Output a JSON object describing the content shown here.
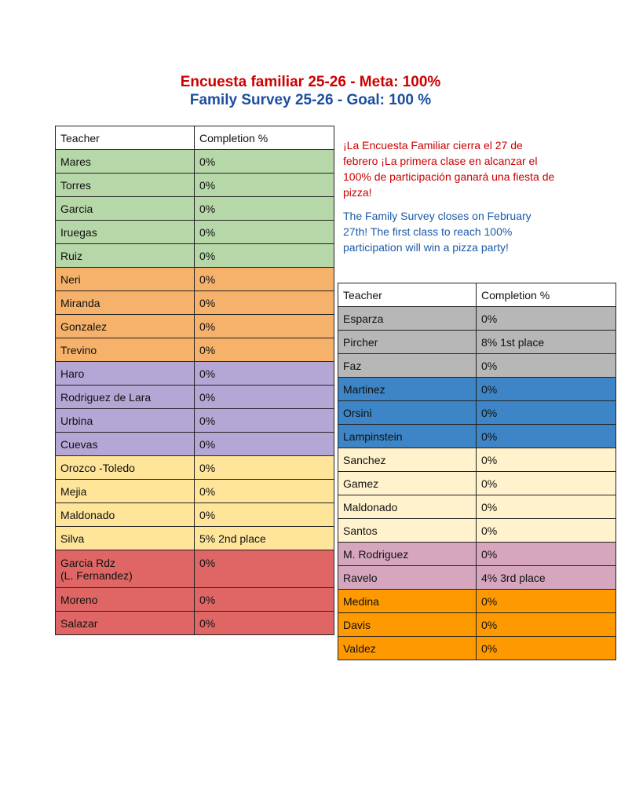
{
  "title_es": "Encuesta familiar 25-26 - Meta: 100%",
  "title_en": "Family Survey 25-26 - Goal: 100 %",
  "note_es": "¡La Encuesta Familiar cierra el 27 de febrero ¡La primera clase en alcanzar el 100% de participación ganará una fiesta de pizza!",
  "note_en": "The Family Survey closes on February 27th! The first class to reach 100% participation will win a pizza party!",
  "colors": {
    "green": "#b6d7a8",
    "orange": "#f6b26b",
    "purple": "#b4a7d6",
    "yellow": "#ffe599",
    "red": "#e06666",
    "gray": "#b7b7b7",
    "blue": "#3d85c6",
    "cream": "#fff2cc",
    "pink": "#d5a6bd",
    "bright_orange": "#ff9900",
    "header": "#ffffff"
  },
  "left_table": {
    "headers": [
      "Teacher",
      "Completion %"
    ],
    "rows": [
      {
        "teacher": "Mares",
        "completion": "0%",
        "color": "green"
      },
      {
        "teacher": "Torres",
        "completion": "0%",
        "color": "green"
      },
      {
        "teacher": "Garcia",
        "completion": "0%",
        "color": "green"
      },
      {
        "teacher": "Iruegas",
        "completion": "0%",
        "color": "green"
      },
      {
        "teacher": "Ruiz",
        "completion": "0%",
        "color": "green"
      },
      {
        "teacher": "Neri",
        "completion": "0%",
        "color": "orange"
      },
      {
        "teacher": "Miranda",
        "completion": "0%",
        "color": "orange"
      },
      {
        "teacher": "Gonzalez",
        "completion": "0%",
        "color": "orange"
      },
      {
        "teacher": "Trevino",
        "completion": "0%",
        "color": "orange"
      },
      {
        "teacher": "Haro",
        "completion": "0%",
        "color": "purple"
      },
      {
        "teacher": "Rodriguez de Lara",
        "completion": "0%",
        "color": "purple"
      },
      {
        "teacher": "Urbina",
        "completion": "0%",
        "color": "purple"
      },
      {
        "teacher": "Cuevas",
        "completion": "0%",
        "color": "purple"
      },
      {
        "teacher": "Orozco -Toledo",
        "completion": "0%",
        "color": "yellow"
      },
      {
        "teacher": "Mejia",
        "completion": "0%",
        "color": "yellow"
      },
      {
        "teacher": "Maldonado",
        "completion": "0%",
        "color": "yellow"
      },
      {
        "teacher": "Silva",
        "completion": "5% 2nd place",
        "color": "yellow"
      },
      {
        "teacher": "Garcia Rdz\n(L. Fernandez)",
        "completion": "0%",
        "color": "red"
      },
      {
        "teacher": "Moreno",
        "completion": "0%",
        "color": "red"
      },
      {
        "teacher": "Salazar",
        "completion": "0%",
        "color": "red"
      }
    ]
  },
  "right_table": {
    "headers": [
      "Teacher",
      "Completion %"
    ],
    "rows": [
      {
        "teacher": "Esparza",
        "completion": "0%",
        "color": "gray"
      },
      {
        "teacher": "Pircher",
        "completion": "8% 1st place",
        "color": "gray"
      },
      {
        "teacher": "Faz",
        "completion": "0%",
        "color": "gray"
      },
      {
        "teacher": "Martinez",
        "completion": "0%",
        "color": "blue"
      },
      {
        "teacher": "Orsini",
        "completion": "0%",
        "color": "blue"
      },
      {
        "teacher": "Lampinstein",
        "completion": "0%",
        "color": "blue"
      },
      {
        "teacher": "Sanchez",
        "completion": "0%",
        "color": "cream"
      },
      {
        "teacher": "Gamez",
        "completion": "0%",
        "color": "cream"
      },
      {
        "teacher": "Maldonado",
        "completion": "0%",
        "color": "cream"
      },
      {
        "teacher": "Santos",
        "completion": "0%",
        "color": "cream"
      },
      {
        "teacher": "M. Rodriguez",
        "completion": "0%",
        "color": "pink"
      },
      {
        "teacher": "Ravelo",
        "completion": "4% 3rd place",
        "color": "pink"
      },
      {
        "teacher": "Medina",
        "completion": "0%",
        "color": "bright_orange"
      },
      {
        "teacher": "Davis",
        "completion": "0%",
        "color": "bright_orange"
      },
      {
        "teacher": "Valdez",
        "completion": "0%",
        "color": "bright_orange"
      }
    ]
  }
}
